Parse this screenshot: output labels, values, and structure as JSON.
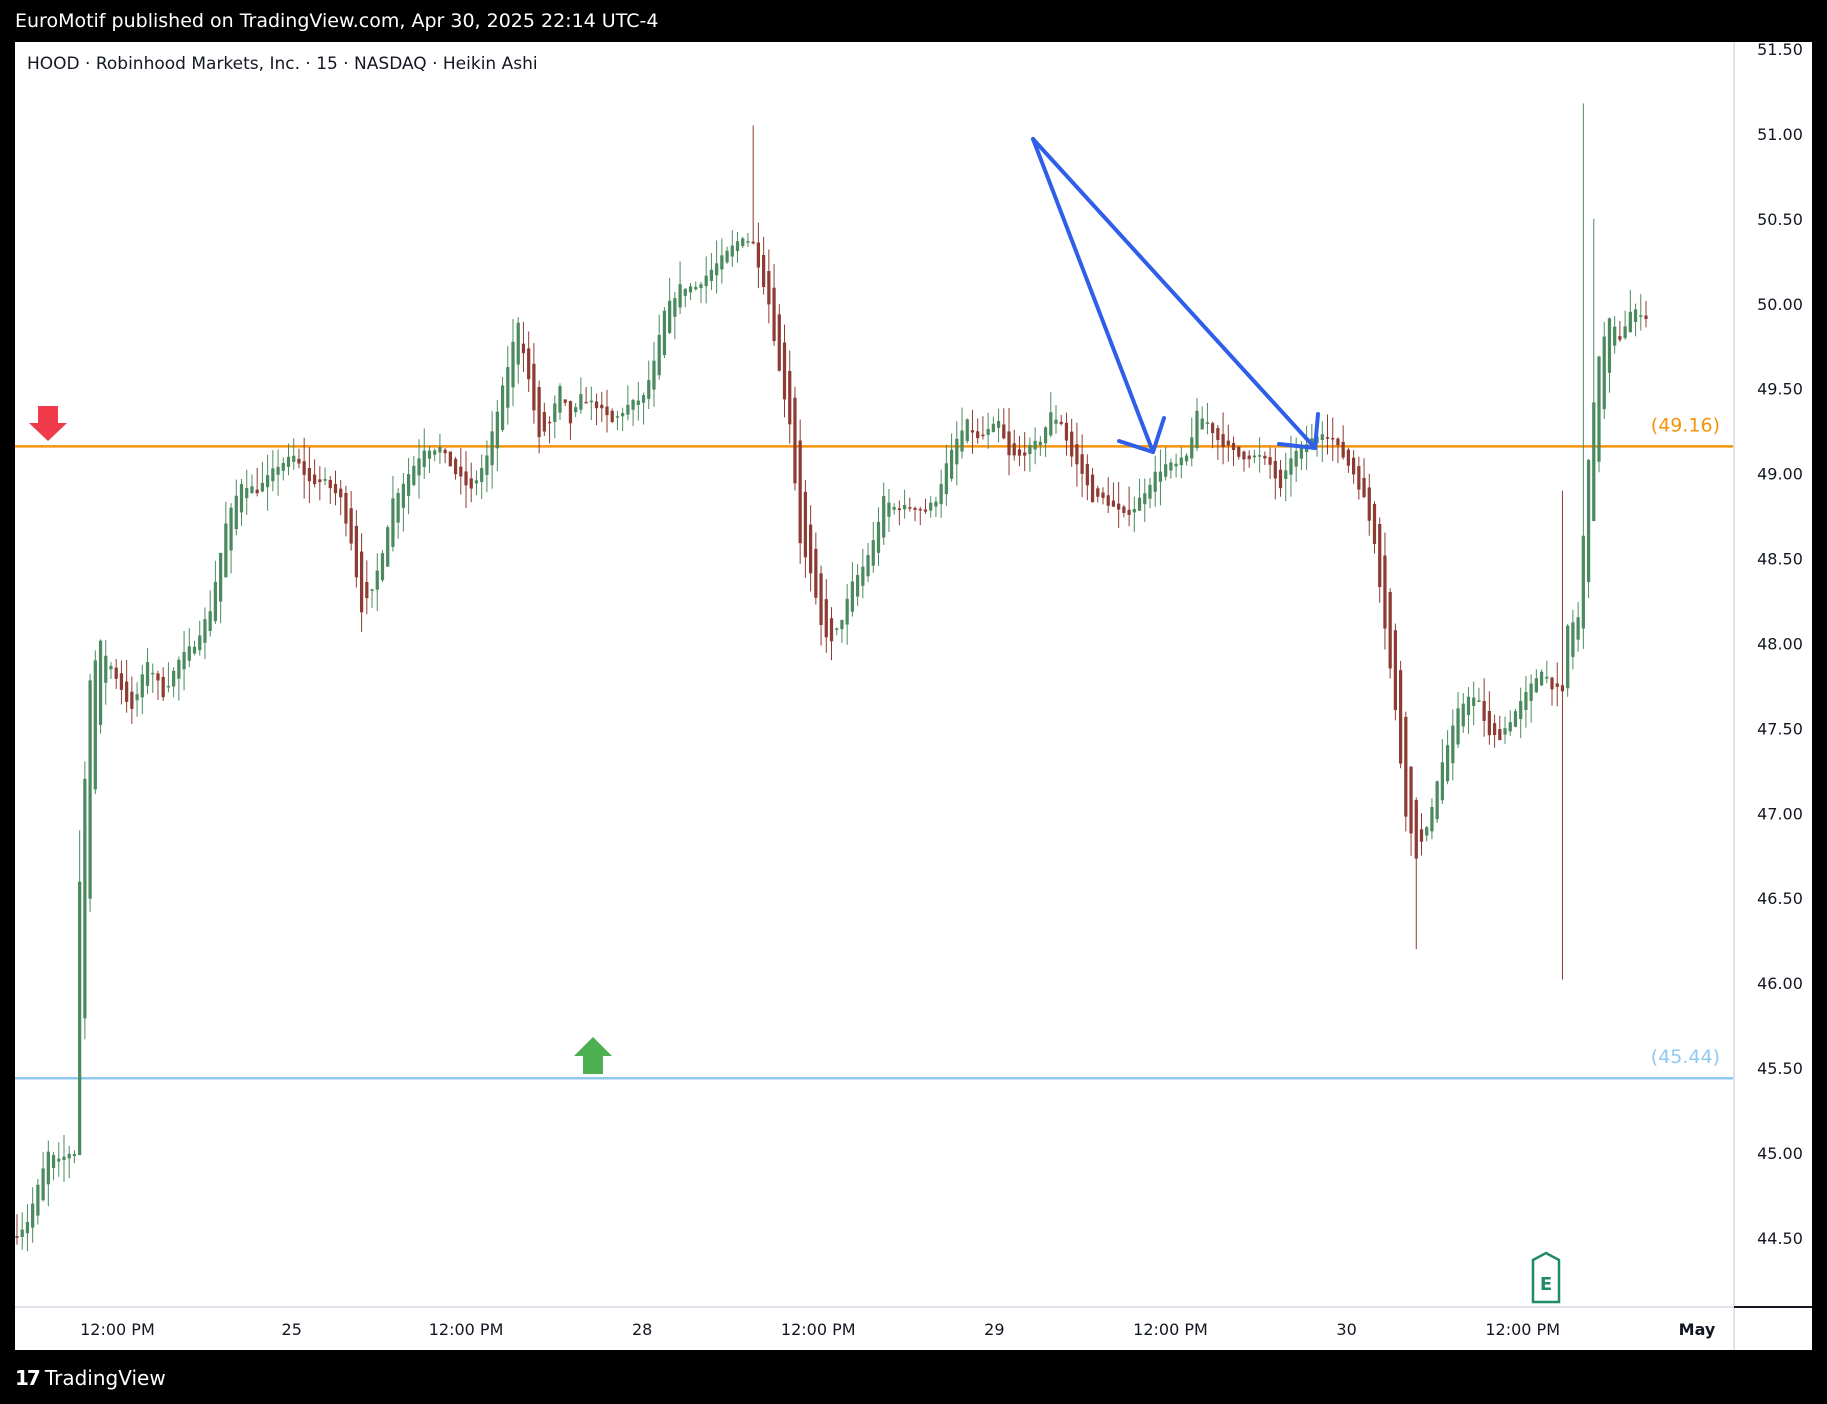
{
  "publish_line": "EuroMotif published on TradingView.com, Apr 30, 2025 22:14 UTC-4",
  "footer_brand": "TradingView",
  "footer_logo_glyph": "17",
  "earnings_marker": "E",
  "colors": {
    "up": "#4a8a5e",
    "down": "#8e3b33",
    "resistance": "#f5930a",
    "support": "#90c8f0",
    "arrow_draw": "#2f5fe8",
    "marker_down": "#f03a4a",
    "marker_up": "#4caf50",
    "earnings": "#1e8a6a"
  },
  "chart_data": {
    "type": "candlestick",
    "title": "HOOD · Robinhood Markets, Inc. · 15 · NASDAQ · Heikin Ashi",
    "ylim": [
      44.0,
      51.6
    ],
    "y_ticks": [
      "51.50",
      "51.00",
      "50.50",
      "50.00",
      "49.50",
      "49.00",
      "48.50",
      "48.00",
      "47.50",
      "47.00",
      "46.50",
      "46.00",
      "45.50",
      "45.00",
      "44.50"
    ],
    "x_ticks": [
      {
        "label": "12:00 PM",
        "pos": 0.057
      },
      {
        "label": "25",
        "pos": 0.154
      },
      {
        "label": "12:00 PM",
        "pos": 0.251
      },
      {
        "label": "28",
        "pos": 0.349
      },
      {
        "label": "12:00 PM",
        "pos": 0.447
      },
      {
        "label": "29",
        "pos": 0.545
      },
      {
        "label": "12:00 PM",
        "pos": 0.643
      },
      {
        "label": "30",
        "pos": 0.741
      },
      {
        "label": "12:00 PM",
        "pos": 0.839
      },
      {
        "label": "May",
        "pos": 0.936
      }
    ],
    "levels": [
      {
        "name": "resistance",
        "value": 49.16,
        "label": "(49.16)"
      },
      {
        "name": "support",
        "value": 45.44,
        "label": "(45.44)"
      }
    ],
    "anchors": [
      [
        0,
        44.52
      ],
      [
        2,
        44.6
      ],
      [
        4,
        44.8
      ],
      [
        6,
        45.0
      ],
      [
        8,
        44.95
      ],
      [
        10,
        45.0
      ],
      [
        11,
        45.0
      ],
      [
        12,
        46.6
      ],
      [
        14,
        47.8
      ],
      [
        16,
        48.0
      ],
      [
        19,
        47.8
      ],
      [
        22,
        47.6
      ],
      [
        25,
        47.9
      ],
      [
        28,
        47.7
      ],
      [
        31,
        47.9
      ],
      [
        34,
        48.0
      ],
      [
        37,
        48.2
      ],
      [
        40,
        48.7
      ],
      [
        43,
        48.95
      ],
      [
        46,
        48.9
      ],
      [
        50,
        49.05
      ],
      [
        53,
        49.1
      ],
      [
        56,
        48.95
      ],
      [
        59,
        48.95
      ],
      [
        62,
        48.85
      ],
      [
        64,
        48.6
      ],
      [
        66,
        48.2
      ],
      [
        68,
        48.3
      ],
      [
        70,
        48.55
      ],
      [
        72,
        48.85
      ],
      [
        75,
        49.0
      ],
      [
        78,
        49.15
      ],
      [
        81,
        49.15
      ],
      [
        84,
        49.0
      ],
      [
        87,
        48.9
      ],
      [
        90,
        49.1
      ],
      [
        93,
        49.5
      ],
      [
        96,
        49.9
      ],
      [
        98,
        49.55
      ],
      [
        100,
        49.2
      ],
      [
        102,
        49.3
      ],
      [
        104,
        49.5
      ],
      [
        106,
        49.3
      ],
      [
        108,
        49.45
      ],
      [
        111,
        49.4
      ],
      [
        114,
        49.3
      ],
      [
        117,
        49.4
      ],
      [
        120,
        49.45
      ],
      [
        122,
        49.65
      ],
      [
        124,
        49.95
      ],
      [
        127,
        50.1
      ],
      [
        130,
        50.1
      ],
      [
        133,
        50.2
      ],
      [
        136,
        50.3
      ],
      [
        139,
        50.4
      ],
      [
        141,
        50.35
      ],
      [
        144,
        50.0
      ],
      [
        146,
        49.6
      ],
      [
        148,
        49.3
      ],
      [
        150,
        48.6
      ],
      [
        152,
        48.4
      ],
      [
        154,
        48.1
      ],
      [
        156,
        48.0
      ],
      [
        158,
        48.15
      ],
      [
        160,
        48.35
      ],
      [
        162,
        48.45
      ],
      [
        164,
        48.6
      ],
      [
        166,
        48.85
      ],
      [
        168,
        48.8
      ],
      [
        170,
        48.8
      ],
      [
        172,
        48.8
      ],
      [
        174,
        48.78
      ],
      [
        176,
        48.85
      ],
      [
        178,
        49.05
      ],
      [
        180,
        49.2
      ],
      [
        182,
        49.3
      ],
      [
        184,
        49.2
      ],
      [
        186,
        49.25
      ],
      [
        188,
        49.3
      ],
      [
        190,
        49.1
      ],
      [
        192,
        49.1
      ],
      [
        194,
        49.15
      ],
      [
        196,
        49.2
      ],
      [
        198,
        49.35
      ],
      [
        200,
        49.3
      ],
      [
        202,
        49.1
      ],
      [
        204,
        49.0
      ],
      [
        206,
        48.85
      ],
      [
        208,
        48.85
      ],
      [
        210,
        48.8
      ],
      [
        212,
        48.75
      ],
      [
        214,
        48.8
      ],
      [
        216,
        48.9
      ],
      [
        218,
        49.0
      ],
      [
        220,
        49.05
      ],
      [
        222,
        49.05
      ],
      [
        224,
        49.1
      ],
      [
        226,
        49.35
      ],
      [
        228,
        49.3
      ],
      [
        230,
        49.2
      ],
      [
        232,
        49.15
      ],
      [
        234,
        49.1
      ],
      [
        236,
        49.1
      ],
      [
        238,
        49.1
      ],
      [
        240,
        49.05
      ],
      [
        242,
        48.9
      ],
      [
        244,
        49.1
      ],
      [
        246,
        49.15
      ],
      [
        248,
        49.2
      ],
      [
        250,
        49.25
      ],
      [
        252,
        49.2
      ],
      [
        254,
        49.1
      ],
      [
        256,
        49.0
      ],
      [
        258,
        48.85
      ],
      [
        260,
        48.6
      ],
      [
        262,
        48.1
      ],
      [
        264,
        47.6
      ],
      [
        266,
        47.0
      ],
      [
        268,
        46.75
      ],
      [
        270,
        46.9
      ],
      [
        272,
        47.2
      ],
      [
        274,
        47.4
      ],
      [
        276,
        47.6
      ],
      [
        278,
        47.7
      ],
      [
        280,
        47.65
      ],
      [
        282,
        47.45
      ],
      [
        284,
        47.45
      ],
      [
        286,
        47.55
      ],
      [
        288,
        47.65
      ],
      [
        290,
        47.75
      ],
      [
        292,
        47.85
      ],
      [
        294,
        47.75
      ],
      [
        296,
        47.7
      ],
      [
        297,
        48.1
      ],
      [
        299,
        48.15
      ],
      [
        301,
        49.1
      ],
      [
        303,
        49.7
      ],
      [
        305,
        49.9
      ],
      [
        307,
        49.8
      ],
      [
        309,
        49.95
      ],
      [
        311,
        49.95
      ],
      [
        312,
        49.92
      ]
    ]
  }
}
